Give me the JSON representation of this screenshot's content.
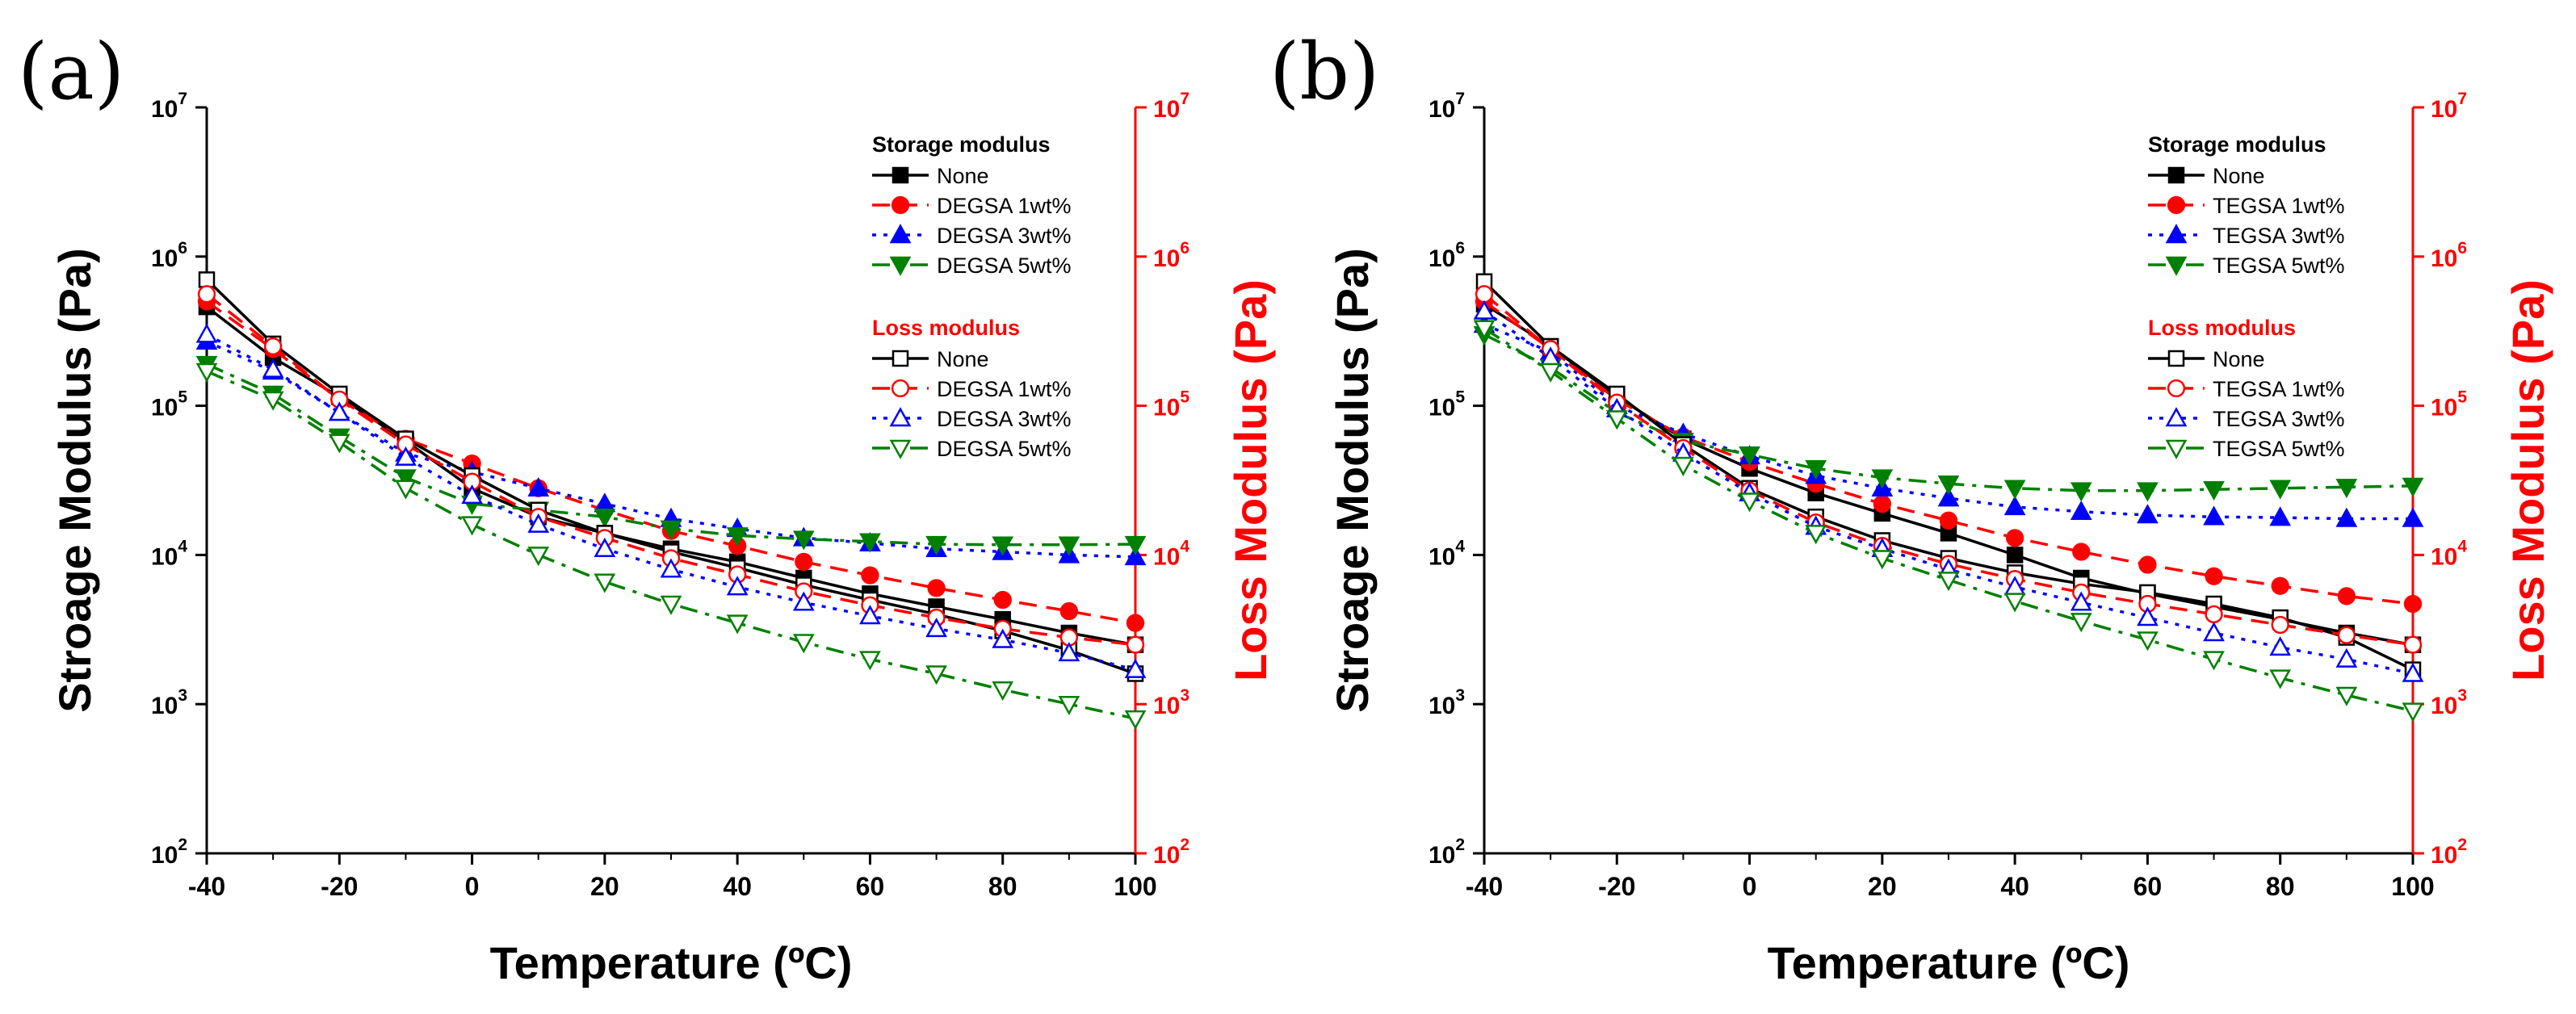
{
  "chart_data": [
    {
      "type": "line",
      "panel_label": "(a)",
      "xlabel": "Temperature (ºC)",
      "ylabel": "Stroage Modulus (Pa)",
      "ylabel_right": "Loss Modulus (Pa)",
      "xlim": [
        -40,
        100
      ],
      "ylim": [
        100,
        10000000
      ],
      "yscale": "log",
      "x_ticks": [
        "-40",
        "-20",
        "0",
        "20",
        "40",
        "60",
        "80",
        "100"
      ],
      "y_ticks": [
        {
          "base": "10",
          "exp": "2"
        },
        {
          "base": "10",
          "exp": "3"
        },
        {
          "base": "10",
          "exp": "4"
        },
        {
          "base": "10",
          "exp": "5"
        },
        {
          "base": "10",
          "exp": "6"
        },
        {
          "base": "10",
          "exp": "7"
        }
      ],
      "legend_storage_title": "Storage modulus",
      "legend_loss_title": "Loss modulus",
      "x": [
        -40,
        -30,
        -20,
        -10,
        0,
        10,
        20,
        30,
        40,
        50,
        60,
        70,
        80,
        90,
        100
      ],
      "series": [
        {
          "group": "storage",
          "name": "None",
          "color": "#000000",
          "marker": "square",
          "filled": true,
          "dash": "solid",
          "values": [
            460000,
            210000,
            115000,
            58000,
            28000,
            18000,
            14000,
            11000,
            9000,
            7000,
            5500,
            4500,
            3700,
            3000,
            2500
          ]
        },
        {
          "group": "storage",
          "name": "DEGSA 1wt%",
          "color": "#ff0000",
          "marker": "circle",
          "filled": true,
          "dash": "dash",
          "values": [
            500000,
            240000,
            110000,
            60000,
            41000,
            28000,
            20000,
            14500,
            11500,
            9000,
            7300,
            6000,
            5000,
            4200,
            3500
          ]
        },
        {
          "group": "storage",
          "name": "DEGSA 3wt%",
          "color": "#0000ff",
          "marker": "tri-up",
          "filled": true,
          "dash": "dot",
          "values": [
            270000,
            170000,
            90000,
            48000,
            36000,
            28000,
            22000,
            17500,
            15000,
            13000,
            12000,
            11000,
            10500,
            10000,
            9700
          ]
        },
        {
          "group": "storage",
          "name": "DEGSA 5wt%",
          "color": "#008000",
          "marker": "tri-down",
          "filled": true,
          "dash": "dashdot",
          "values": [
            190000,
            120000,
            62000,
            33000,
            22000,
            20000,
            18000,
            15000,
            13500,
            12800,
            12300,
            11800,
            11700,
            11700,
            11800
          ]
        },
        {
          "group": "loss",
          "name": "None",
          "color": "#000000",
          "marker": "square",
          "filled": false,
          "dash": "solid",
          "values": [
            700000,
            260000,
            120000,
            60000,
            34000,
            20000,
            14000,
            10500,
            8200,
            6300,
            5000,
            4000,
            3100,
            2300,
            1600
          ]
        },
        {
          "group": "loss",
          "name": "DEGSA 1wt%",
          "color": "#ff0000",
          "marker": "circle",
          "filled": false,
          "dash": "dash",
          "values": [
            560000,
            250000,
            110000,
            55000,
            31000,
            18000,
            13000,
            9500,
            7400,
            5700,
            4600,
            3800,
            3200,
            2800,
            2500
          ]
        },
        {
          "group": "loss",
          "name": "DEGSA 3wt%",
          "color": "#0000ff",
          "marker": "tri-up",
          "filled": false,
          "dash": "dot",
          "values": [
            300000,
            175000,
            90000,
            45000,
            25000,
            16000,
            11000,
            8000,
            6100,
            4800,
            3900,
            3200,
            2700,
            2200,
            1700
          ]
        },
        {
          "group": "loss",
          "name": "DEGSA 5wt%",
          "color": "#008000",
          "marker": "tri-down",
          "filled": false,
          "dash": "dashdot",
          "values": [
            170000,
            110000,
            57000,
            28000,
            16000,
            10000,
            6600,
            4700,
            3500,
            2600,
            2000,
            1600,
            1250,
            1000,
            800
          ]
        }
      ]
    },
    {
      "type": "line",
      "panel_label": "(b)",
      "xlabel": "Temperature (ºC)",
      "ylabel": "Stroage Modulus (Pa)",
      "ylabel_right": "Loss Modulus (Pa)",
      "xlim": [
        -40,
        100
      ],
      "ylim": [
        100,
        10000000
      ],
      "yscale": "log",
      "x_ticks": [
        "-40",
        "-20",
        "0",
        "20",
        "40",
        "60",
        "80",
        "100"
      ],
      "y_ticks": [
        {
          "base": "10",
          "exp": "2"
        },
        {
          "base": "10",
          "exp": "3"
        },
        {
          "base": "10",
          "exp": "4"
        },
        {
          "base": "10",
          "exp": "5"
        },
        {
          "base": "10",
          "exp": "6"
        },
        {
          "base": "10",
          "exp": "7"
        }
      ],
      "legend_storage_title": "Storage modulus",
      "legend_loss_title": "Loss modulus",
      "x": [
        -40,
        -30,
        -20,
        -10,
        0,
        10,
        20,
        30,
        40,
        50,
        60,
        70,
        80,
        90,
        100
      ],
      "series": [
        {
          "group": "storage",
          "name": "None",
          "color": "#000000",
          "marker": "square",
          "filled": true,
          "dash": "solid",
          "values": [
            480000,
            250000,
            115000,
            60000,
            38000,
            26000,
            19000,
            14000,
            10000,
            7000,
            5500,
            4500,
            3700,
            3000,
            2500
          ]
        },
        {
          "group": "storage",
          "name": "TEGSA 1wt%",
          "color": "#ff0000",
          "marker": "circle",
          "filled": true,
          "dash": "dash",
          "values": [
            500000,
            240000,
            110000,
            62000,
            42000,
            30000,
            22000,
            17000,
            13000,
            10500,
            8600,
            7200,
            6200,
            5300,
            4700
          ]
        },
        {
          "group": "storage",
          "name": "TEGSA 3wt%",
          "color": "#0000ff",
          "marker": "tri-up",
          "filled": true,
          "dash": "dot",
          "values": [
            350000,
            230000,
            100000,
            65000,
            46000,
            34000,
            28000,
            24000,
            21000,
            19500,
            18500,
            18000,
            17800,
            17500,
            17500
          ]
        },
        {
          "group": "storage",
          "name": "TEGSA 5wt%",
          "color": "#008000",
          "marker": "tri-down",
          "filled": true,
          "dash": "dashdot",
          "values": [
            300000,
            180000,
            90000,
            58000,
            47000,
            38000,
            33000,
            30000,
            28000,
            27000,
            27000,
            27500,
            28000,
            28500,
            29000
          ]
        },
        {
          "group": "loss",
          "name": "None",
          "color": "#000000",
          "marker": "square",
          "filled": false,
          "dash": "solid",
          "values": [
            680000,
            250000,
            120000,
            55000,
            28000,
            18000,
            12500,
            9500,
            7600,
            6400,
            5600,
            4700,
            3800,
            2800,
            1700
          ]
        },
        {
          "group": "loss",
          "name": "TEGSA 1wt%",
          "color": "#ff0000",
          "marker": "circle",
          "filled": false,
          "dash": "dash",
          "values": [
            560000,
            240000,
            105000,
            52000,
            27000,
            16500,
            11500,
            8700,
            6900,
            5600,
            4700,
            4000,
            3400,
            2900,
            2500
          ]
        },
        {
          "group": "loss",
          "name": "TEGSA 3wt%",
          "color": "#0000ff",
          "marker": "tri-up",
          "filled": false,
          "dash": "dot",
          "values": [
            430000,
            210000,
            95000,
            48000,
            26000,
            15500,
            11000,
            8000,
            6100,
            4800,
            3800,
            3000,
            2400,
            2000,
            1600
          ]
        },
        {
          "group": "loss",
          "name": "TEGSA 5wt%",
          "color": "#008000",
          "marker": "tri-down",
          "filled": false,
          "dash": "dashdot",
          "values": [
            330000,
            170000,
            82000,
            40000,
            23000,
            14000,
            9500,
            6800,
            4900,
            3600,
            2700,
            2000,
            1500,
            1150,
            900
          ]
        }
      ]
    }
  ]
}
